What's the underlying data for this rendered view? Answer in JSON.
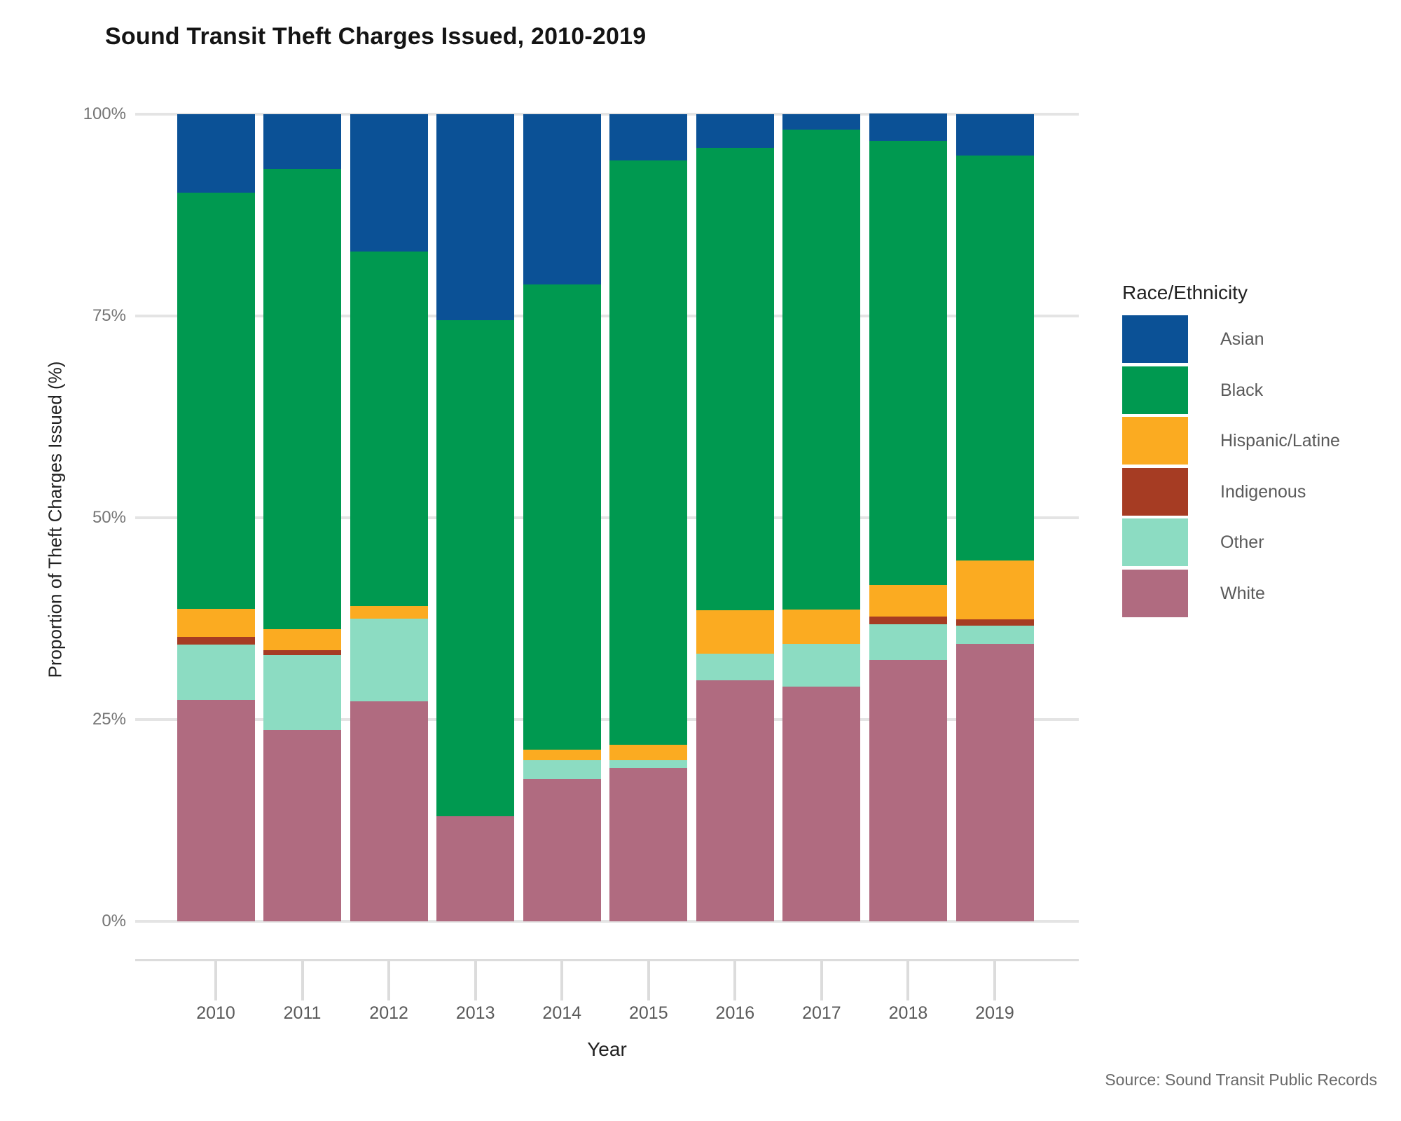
{
  "title": "Sound Transit Theft Charges Issued, 2010-2019",
  "y_axis": {
    "title": "Proportion of Theft Charges Issued (%)",
    "ticks": [
      {
        "label": "100%",
        "value": 100
      },
      {
        "label": "75%",
        "value": 75
      },
      {
        "label": "50%",
        "value": 50
      },
      {
        "label": "25%",
        "value": 25
      },
      {
        "label": "0%",
        "value": 0
      }
    ]
  },
  "x_axis": {
    "title": "Year"
  },
  "legend": {
    "title": "Race/Ethnicity",
    "items": [
      {
        "label": "Asian",
        "color": "#0b5196"
      },
      {
        "label": "Black",
        "color": "#009950"
      },
      {
        "label": "Hispanic/Latine",
        "color": "#fbab21"
      },
      {
        "label": "Indigenous",
        "color": "#a63c23"
      },
      {
        "label": "Other",
        "color": "#8cdcc2"
      },
      {
        "label": "White",
        "color": "#b06b80"
      }
    ]
  },
  "source": "Source: Sound Transit Public Records",
  "chart_data": {
    "type": "bar",
    "stacked": true,
    "normalized_percent": true,
    "title": "Sound Transit Theft Charges Issued, 2010-2019",
    "xlabel": "Year",
    "ylabel": "Proportion of Theft Charges Issued (%)",
    "ylim": [
      0,
      100
    ],
    "grid": true,
    "legend_position": "right",
    "categories": [
      "2010",
      "2011",
      "2012",
      "2013",
      "2014",
      "2015",
      "2016",
      "2017",
      "2018",
      "2019"
    ],
    "stack_order_bottom_to_top": [
      "White",
      "Other",
      "Indigenous",
      "Hispanic/Latine",
      "Black",
      "Asian"
    ],
    "series": [
      {
        "name": "Asian",
        "color": "#0b5196",
        "values": [
          9.7,
          6.8,
          17.0,
          25.5,
          21.1,
          5.7,
          4.2,
          1.9,
          3.4,
          5.1
        ]
      },
      {
        "name": "Black",
        "color": "#009950",
        "values": [
          51.6,
          57.0,
          43.9,
          61.5,
          57.6,
          72.4,
          57.3,
          59.5,
          55.0,
          50.2
        ]
      },
      {
        "name": "Hispanic/Latine",
        "color": "#fbab21",
        "values": [
          3.5,
          2.6,
          1.6,
          0.0,
          1.3,
          1.9,
          5.3,
          4.2,
          3.9,
          7.3
        ]
      },
      {
        "name": "Indigenous",
        "color": "#a63c23",
        "values": [
          0.9,
          0.6,
          0.0,
          0.0,
          0.0,
          0.0,
          0.0,
          0.0,
          1.0,
          0.8
        ]
      },
      {
        "name": "Other",
        "color": "#8cdcc2",
        "values": [
          6.9,
          9.3,
          10.2,
          0.0,
          2.4,
          1.0,
          3.3,
          5.3,
          4.4,
          2.2
        ]
      },
      {
        "name": "White",
        "color": "#b06b80",
        "values": [
          27.4,
          23.7,
          27.3,
          13.0,
          17.6,
          19.0,
          29.9,
          29.1,
          32.4,
          34.4
        ]
      }
    ]
  }
}
